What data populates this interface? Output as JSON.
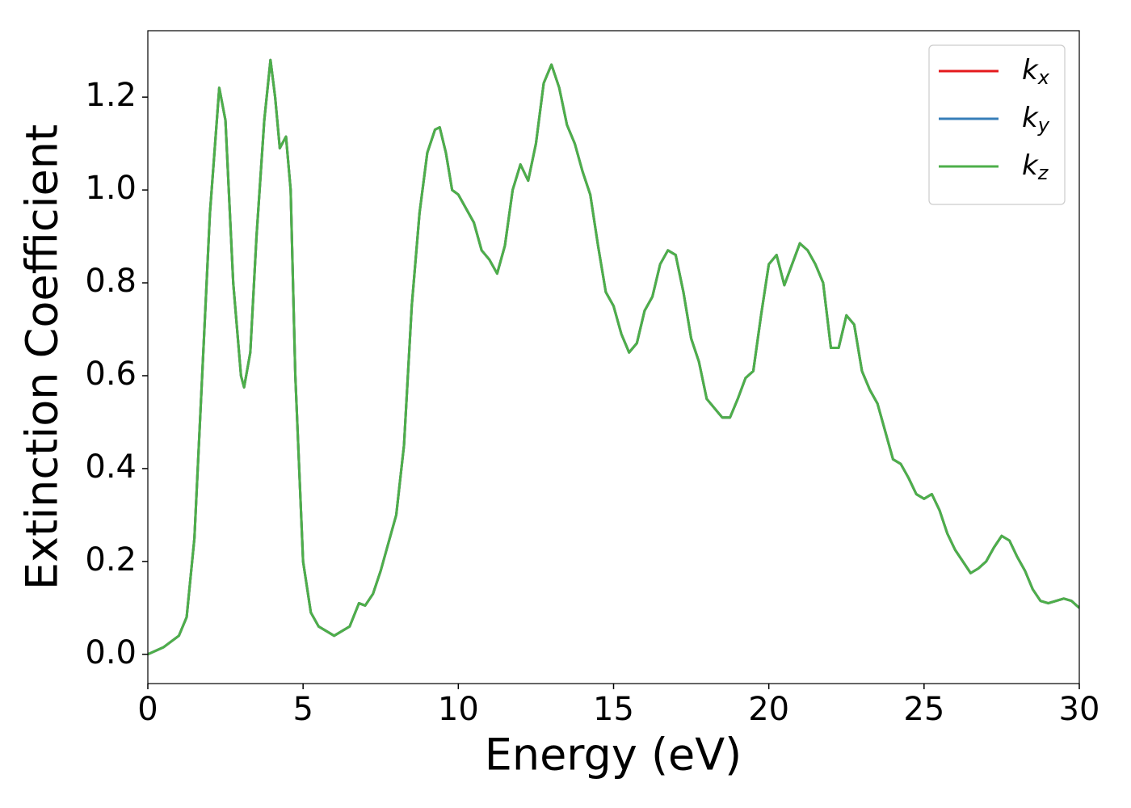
{
  "chart_data": {
    "type": "line",
    "xlabel": "Energy (eV)",
    "ylabel": "Extinction Coefficient",
    "x": [
      0,
      0.5,
      1,
      1.25,
      1.5,
      1.75,
      2,
      2.3,
      2.5,
      2.75,
      3,
      3.1,
      3.3,
      3.5,
      3.75,
      3.95,
      4.1,
      4.25,
      4.45,
      4.6,
      4.75,
      5,
      5.25,
      5.5,
      6,
      6.5,
      6.8,
      7,
      7.25,
      7.5,
      8,
      8.25,
      8.5,
      8.75,
      9,
      9.25,
      9.4,
      9.6,
      9.8,
      10,
      10.25,
      10.5,
      10.75,
      11,
      11.25,
      11.5,
      11.75,
      12,
      12.25,
      12.5,
      12.75,
      13,
      13.25,
      13.5,
      13.75,
      14,
      14.25,
      14.5,
      14.75,
      15,
      15.25,
      15.5,
      15.75,
      16,
      16.25,
      16.5,
      16.75,
      17,
      17.25,
      17.5,
      17.75,
      18,
      18.25,
      18.5,
      18.75,
      19,
      19.25,
      19.5,
      19.75,
      20,
      20.25,
      20.5,
      20.75,
      21,
      21.25,
      21.5,
      21.75,
      22,
      22.25,
      22.5,
      22.75,
      23,
      23.25,
      23.5,
      23.75,
      24,
      24.25,
      24.5,
      24.75,
      25,
      25.25,
      25.5,
      25.75,
      26,
      26.25,
      26.5,
      26.75,
      27,
      27.25,
      27.5,
      27.75,
      28,
      28.25,
      28.5,
      28.75,
      29,
      29.25,
      29.5,
      29.75,
      30
    ],
    "series": [
      {
        "name": "kx",
        "color": "#e41a1c",
        "values": [
          0,
          0.015,
          0.04,
          0.08,
          0.25,
          0.6,
          0.95,
          1.22,
          1.15,
          0.8,
          0.6,
          0.575,
          0.65,
          0.9,
          1.15,
          1.28,
          1.2,
          1.09,
          1.115,
          1.0,
          0.6,
          0.2,
          0.09,
          0.06,
          0.04,
          0.06,
          0.11,
          0.105,
          0.13,
          0.18,
          0.3,
          0.45,
          0.75,
          0.95,
          1.08,
          1.13,
          1.135,
          1.08,
          1.0,
          0.99,
          0.96,
          0.93,
          0.87,
          0.85,
          0.82,
          0.88,
          1.0,
          1.055,
          1.02,
          1.1,
          1.23,
          1.27,
          1.22,
          1.14,
          1.1,
          1.04,
          0.99,
          0.88,
          0.78,
          0.75,
          0.69,
          0.65,
          0.67,
          0.74,
          0.77,
          0.84,
          0.87,
          0.86,
          0.78,
          0.68,
          0.63,
          0.55,
          0.53,
          0.51,
          0.51,
          0.55,
          0.595,
          0.61,
          0.73,
          0.84,
          0.86,
          0.795,
          0.84,
          0.885,
          0.87,
          0.84,
          0.8,
          0.66,
          0.66,
          0.73,
          0.71,
          0.61,
          0.57,
          0.54,
          0.48,
          0.42,
          0.41,
          0.38,
          0.345,
          0.335,
          0.345,
          0.31,
          0.26,
          0.225,
          0.2,
          0.175,
          0.185,
          0.2,
          0.23,
          0.255,
          0.245,
          0.21,
          0.18,
          0.14,
          0.115,
          0.11,
          0.115,
          0.12,
          0.115,
          0.1
        ]
      },
      {
        "name": "ky",
        "color": "#377eb8",
        "values": [
          0,
          0.015,
          0.04,
          0.08,
          0.25,
          0.6,
          0.95,
          1.22,
          1.15,
          0.8,
          0.6,
          0.575,
          0.65,
          0.9,
          1.15,
          1.28,
          1.2,
          1.09,
          1.115,
          1.0,
          0.6,
          0.2,
          0.09,
          0.06,
          0.04,
          0.06,
          0.11,
          0.105,
          0.13,
          0.18,
          0.3,
          0.45,
          0.75,
          0.95,
          1.08,
          1.13,
          1.135,
          1.08,
          1.0,
          0.99,
          0.96,
          0.93,
          0.87,
          0.85,
          0.82,
          0.88,
          1.0,
          1.055,
          1.02,
          1.1,
          1.23,
          1.27,
          1.22,
          1.14,
          1.1,
          1.04,
          0.99,
          0.88,
          0.78,
          0.75,
          0.69,
          0.65,
          0.67,
          0.74,
          0.77,
          0.84,
          0.87,
          0.86,
          0.78,
          0.68,
          0.63,
          0.55,
          0.53,
          0.51,
          0.51,
          0.55,
          0.595,
          0.61,
          0.73,
          0.84,
          0.86,
          0.795,
          0.84,
          0.885,
          0.87,
          0.84,
          0.8,
          0.66,
          0.66,
          0.73,
          0.71,
          0.61,
          0.57,
          0.54,
          0.48,
          0.42,
          0.41,
          0.38,
          0.345,
          0.335,
          0.345,
          0.31,
          0.26,
          0.225,
          0.2,
          0.175,
          0.185,
          0.2,
          0.23,
          0.255,
          0.245,
          0.21,
          0.18,
          0.14,
          0.115,
          0.11,
          0.115,
          0.12,
          0.115,
          0.1
        ]
      },
      {
        "name": "kz",
        "color": "#4daf4a",
        "values": [
          0,
          0.015,
          0.04,
          0.08,
          0.25,
          0.6,
          0.95,
          1.22,
          1.15,
          0.8,
          0.6,
          0.575,
          0.65,
          0.9,
          1.15,
          1.28,
          1.2,
          1.09,
          1.115,
          1.0,
          0.6,
          0.2,
          0.09,
          0.06,
          0.04,
          0.06,
          0.11,
          0.105,
          0.13,
          0.18,
          0.3,
          0.45,
          0.75,
          0.95,
          1.08,
          1.13,
          1.135,
          1.08,
          1.0,
          0.99,
          0.96,
          0.93,
          0.87,
          0.85,
          0.82,
          0.88,
          1.0,
          1.055,
          1.02,
          1.1,
          1.23,
          1.27,
          1.22,
          1.14,
          1.1,
          1.04,
          0.99,
          0.88,
          0.78,
          0.75,
          0.69,
          0.65,
          0.67,
          0.74,
          0.77,
          0.84,
          0.87,
          0.86,
          0.78,
          0.68,
          0.63,
          0.55,
          0.53,
          0.51,
          0.51,
          0.55,
          0.595,
          0.61,
          0.73,
          0.84,
          0.86,
          0.795,
          0.84,
          0.885,
          0.87,
          0.84,
          0.8,
          0.66,
          0.66,
          0.73,
          0.71,
          0.61,
          0.57,
          0.54,
          0.48,
          0.42,
          0.41,
          0.38,
          0.345,
          0.335,
          0.345,
          0.31,
          0.26,
          0.225,
          0.2,
          0.175,
          0.185,
          0.2,
          0.23,
          0.255,
          0.245,
          0.21,
          0.18,
          0.14,
          0.115,
          0.11,
          0.115,
          0.12,
          0.115,
          0.1
        ]
      }
    ],
    "xlim": [
      0,
      30
    ],
    "xticks": [
      0,
      5,
      10,
      15,
      20,
      25,
      30
    ],
    "ylim": [
      -0.063,
      1.343
    ],
    "yticks": [
      {
        "value": 0,
        "label": "0.0"
      },
      0.2,
      0.4,
      0.6,
      0.8,
      {
        "value": 1,
        "label": "1.0"
      },
      1.2
    ],
    "grid": false,
    "legend": "upper right"
  }
}
